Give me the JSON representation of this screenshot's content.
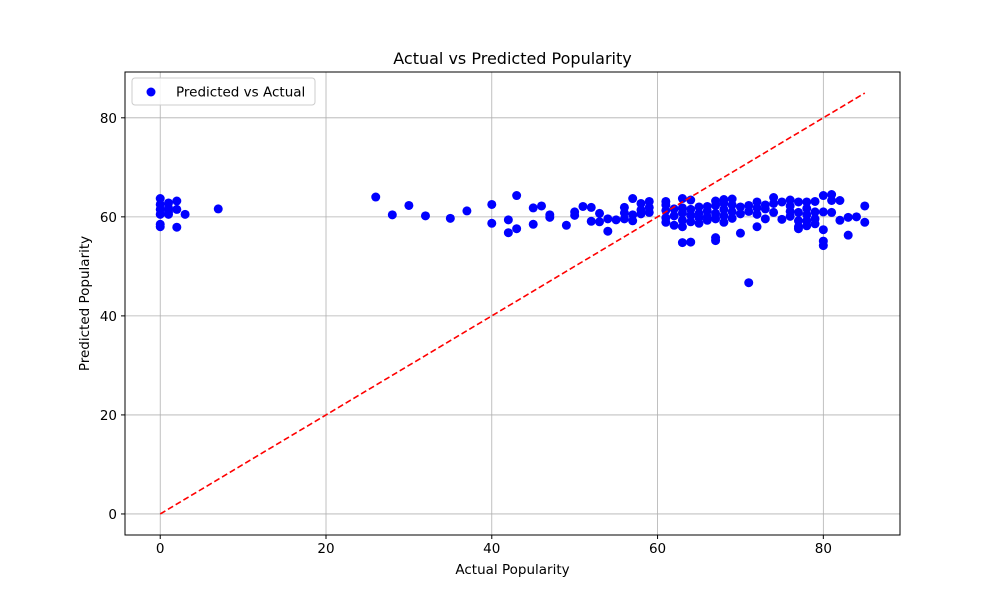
{
  "chart_data": {
    "type": "scatter",
    "title": "Actual vs Predicted Popularity",
    "xlabel": "Actual Popularity",
    "ylabel": "Predicted Popularity",
    "xlim": [
      -4.25,
      89.25
    ],
    "ylim": [
      -4.25,
      89.25
    ],
    "xticks": [
      0,
      20,
      40,
      60,
      80
    ],
    "yticks": [
      0,
      20,
      40,
      60,
      80
    ],
    "grid": true,
    "legend": {
      "position": "top-left",
      "entries": [
        "Predicted vs Actual"
      ]
    },
    "series": [
      {
        "name": "Predicted vs Actual",
        "color": "#0000ff",
        "marker": "circle",
        "points": [
          [
            0,
            63.7
          ],
          [
            0,
            62.5
          ],
          [
            0,
            61.5
          ],
          [
            0,
            60.5
          ],
          [
            0,
            58.5
          ],
          [
            0,
            58.0
          ],
          [
            1,
            62.8
          ],
          [
            1,
            61.8
          ],
          [
            1,
            61.0
          ],
          [
            1,
            60.5
          ],
          [
            2,
            63.2
          ],
          [
            2,
            61.5
          ],
          [
            2,
            57.9
          ],
          [
            3,
            60.5
          ],
          [
            7,
            61.6
          ],
          [
            26,
            64.0
          ],
          [
            28,
            60.4
          ],
          [
            30,
            62.3
          ],
          [
            32,
            60.2
          ],
          [
            35,
            59.7
          ],
          [
            37,
            61.2
          ],
          [
            40,
            62.5
          ],
          [
            40,
            58.7
          ],
          [
            42,
            59.4
          ],
          [
            42,
            56.8
          ],
          [
            43,
            64.3
          ],
          [
            43,
            57.6
          ],
          [
            45,
            61.8
          ],
          [
            45,
            58.5
          ],
          [
            46,
            62.2
          ],
          [
            47,
            60.4
          ],
          [
            47,
            59.9
          ],
          [
            49,
            58.3
          ],
          [
            50,
            61.0
          ],
          [
            50,
            60.3
          ],
          [
            51,
            62.1
          ],
          [
            52,
            61.9
          ],
          [
            52,
            59.1
          ],
          [
            53,
            60.7
          ],
          [
            53,
            59.0
          ],
          [
            54,
            59.6
          ],
          [
            54,
            57.1
          ],
          [
            55,
            59.4
          ],
          [
            56,
            61.9
          ],
          [
            56,
            60.8
          ],
          [
            56,
            59.6
          ],
          [
            57,
            63.7
          ],
          [
            57,
            59.2
          ],
          [
            57,
            60.4
          ],
          [
            58,
            62.7
          ],
          [
            58,
            61.4
          ],
          [
            58,
            60.6
          ],
          [
            59,
            63.1
          ],
          [
            59,
            61.9
          ],
          [
            59,
            60.9
          ],
          [
            61,
            63.1
          ],
          [
            61,
            62.4
          ],
          [
            61,
            61.3
          ],
          [
            61,
            59.8
          ],
          [
            61,
            58.9
          ],
          [
            62,
            61.6
          ],
          [
            62,
            60.2
          ],
          [
            62,
            58.3
          ],
          [
            63,
            63.7
          ],
          [
            63,
            61.8
          ],
          [
            63,
            60.8
          ],
          [
            63,
            59.3
          ],
          [
            63,
            58.0
          ],
          [
            63,
            54.8
          ],
          [
            64,
            63.4
          ],
          [
            64,
            61.5
          ],
          [
            64,
            60.3
          ],
          [
            64,
            59.0
          ],
          [
            64,
            54.9
          ],
          [
            65,
            62.0
          ],
          [
            65,
            60.7
          ],
          [
            65,
            59.8
          ],
          [
            65,
            58.7
          ],
          [
            66,
            62.1
          ],
          [
            66,
            61.2
          ],
          [
            66,
            60.0
          ],
          [
            66,
            59.3
          ],
          [
            67,
            63.2
          ],
          [
            67,
            62.3
          ],
          [
            67,
            60.7
          ],
          [
            67,
            59.6
          ],
          [
            67,
            55.8
          ],
          [
            67,
            55.2
          ],
          [
            68,
            63.5
          ],
          [
            68,
            62.7
          ],
          [
            68,
            61.5
          ],
          [
            68,
            60.2
          ],
          [
            68,
            58.9
          ],
          [
            69,
            63.6
          ],
          [
            69,
            62.4
          ],
          [
            69,
            61.0
          ],
          [
            69,
            59.7
          ],
          [
            70,
            62.0
          ],
          [
            70,
            60.6
          ],
          [
            70,
            56.7
          ],
          [
            71,
            62.3
          ],
          [
            71,
            61.1
          ],
          [
            71,
            46.7
          ],
          [
            72,
            63.0
          ],
          [
            72,
            61.8
          ],
          [
            72,
            60.5
          ],
          [
            72,
            58.0
          ],
          [
            73,
            62.4
          ],
          [
            73,
            61.6
          ],
          [
            73,
            59.6
          ],
          [
            74,
            63.9
          ],
          [
            74,
            62.7
          ],
          [
            74,
            60.9
          ],
          [
            75,
            63.0
          ],
          [
            75,
            59.5
          ],
          [
            76,
            63.4
          ],
          [
            76,
            62.2
          ],
          [
            76,
            61.1
          ],
          [
            76,
            60.1
          ],
          [
            77,
            63.0
          ],
          [
            77,
            60.9
          ],
          [
            77,
            59.2
          ],
          [
            77,
            58.0
          ],
          [
            77,
            57.6
          ],
          [
            78,
            63.0
          ],
          [
            78,
            61.7
          ],
          [
            78,
            60.4
          ],
          [
            78,
            59.2
          ],
          [
            78,
            58.2
          ],
          [
            79,
            63.1
          ],
          [
            79,
            61.0
          ],
          [
            79,
            59.6
          ],
          [
            79,
            58.6
          ],
          [
            80,
            64.3
          ],
          [
            80,
            61.0
          ],
          [
            80,
            57.4
          ],
          [
            80,
            55.1
          ],
          [
            80,
            54.2
          ],
          [
            81,
            64.5
          ],
          [
            81,
            63.3
          ],
          [
            81,
            60.9
          ],
          [
            82,
            63.3
          ],
          [
            82,
            59.3
          ],
          [
            83,
            59.9
          ],
          [
            83,
            56.3
          ],
          [
            84,
            60.0
          ],
          [
            85,
            62.2
          ],
          [
            85,
            58.9
          ]
        ]
      },
      {
        "name": "",
        "type": "line",
        "style": "dashed",
        "color": "#ff0000",
        "x": [
          0,
          85
        ],
        "y": [
          0,
          85
        ]
      }
    ]
  }
}
